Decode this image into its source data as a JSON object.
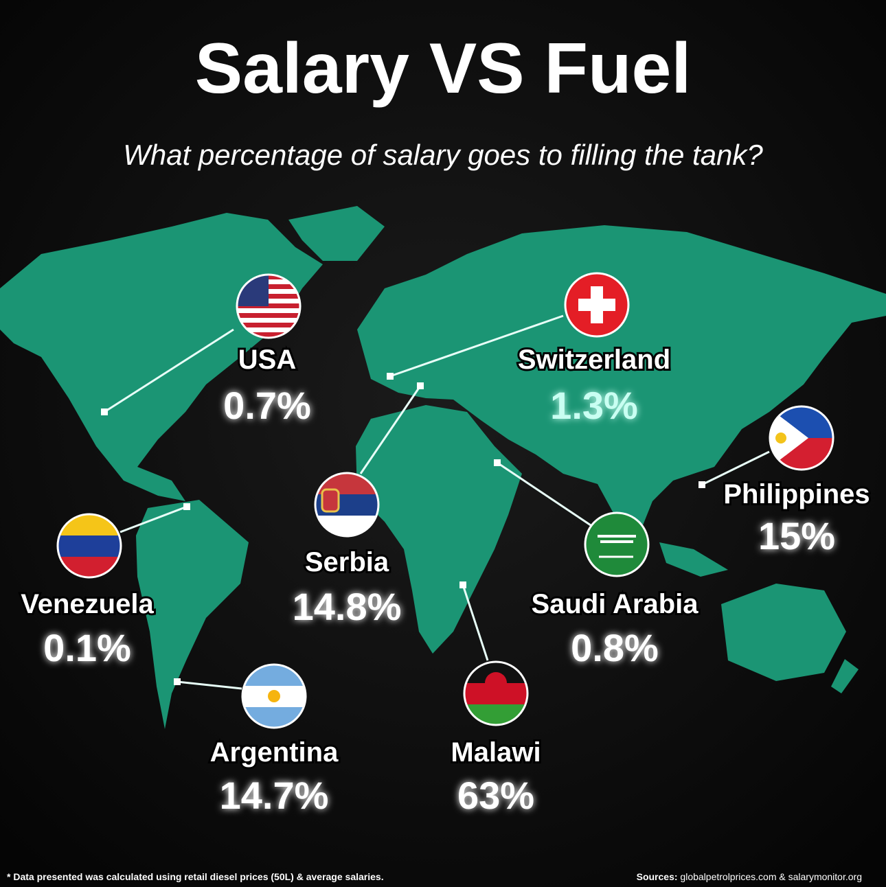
{
  "header": {
    "title": "Salary VS Fuel",
    "subtitle": "What percentage of salary goes to filling the tank?"
  },
  "countries": [
    {
      "name": "USA",
      "share": "0.7%"
    },
    {
      "name": "Switzerland",
      "share": "1.3%"
    },
    {
      "name": "Philippines",
      "share": "15%"
    },
    {
      "name": "Venezuela",
      "share": "0.1%"
    },
    {
      "name": "Serbia",
      "share": "14.8%"
    },
    {
      "name": "Saudi Arabia",
      "share": "0.8%"
    },
    {
      "name": "Argentina",
      "share": "14.7%"
    },
    {
      "name": "Malawi",
      "share": "63%"
    }
  ],
  "footer": {
    "note": "* Data presented was calculated using retail diesel prices (50L) & average salaries.",
    "sources_label": "Sources:",
    "sources": "globalpetrolprices.com & salarymonitor.org"
  }
}
